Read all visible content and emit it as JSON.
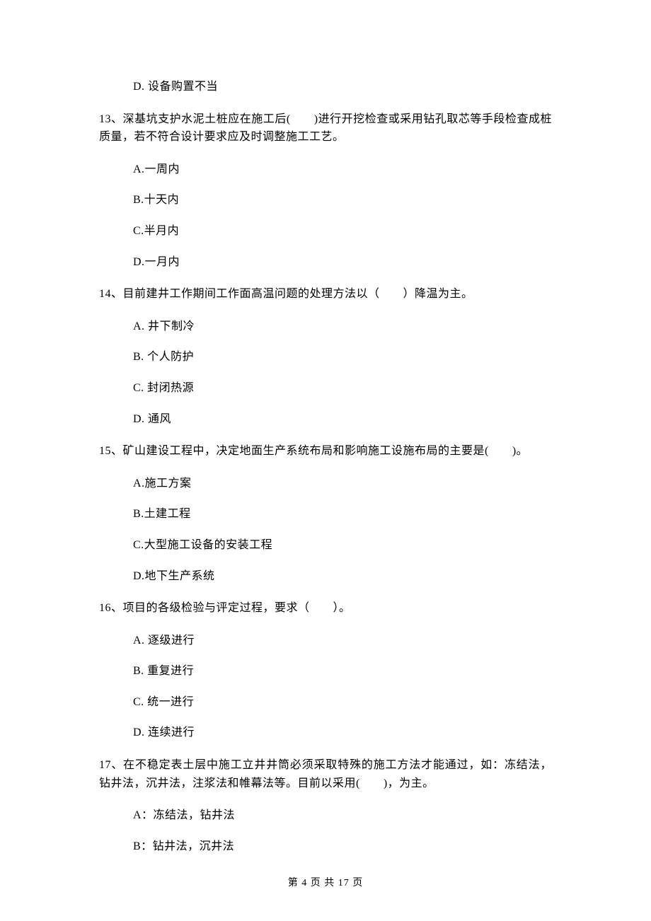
{
  "q12": {
    "optD": "D. 设备购置不当"
  },
  "q13": {
    "stem": "13、深基坑支护水泥土桩应在施工后(　　)进行开挖检查或采用钻孔取芯等手段检查成桩质量，若不符合设计要求应及时调整施工工艺。",
    "optA": "A.一周内",
    "optB": "B.十天内",
    "optC": "C.半月内",
    "optD": "D.一月内"
  },
  "q14": {
    "stem": "14、目前建井工作期间工作面高温问题的处理方法以（　　）降温为主。",
    "optA": "A. 井下制冷",
    "optB": "B. 个人防护",
    "optC": "C. 封闭热源",
    "optD": "D. 通风"
  },
  "q15": {
    "stem": "15、矿山建设工程中，决定地面生产系统布局和影响施工设施布局的主要是(　　)。",
    "optA": "A.施工方案",
    "optB": "B.土建工程",
    "optC": "C.大型施工设备的安装工程",
    "optD": "D.地下生产系统"
  },
  "q16": {
    "stem": "16、项目的各级检验与评定过程，要求（　　）。",
    "optA": "A. 逐级进行",
    "optB": "B. 重复进行",
    "optC": "C. 统一进行",
    "optD": "D. 连续进行"
  },
  "q17": {
    "stem": "17、在不稳定表土层中施工立井井筒必须采取特殊的施工方法才能通过，如：冻结法，钻井法，沉井法，注浆法和帷幕法等。目前以采用(　　)，为主。",
    "optA": "A：冻结法，钻井法",
    "optB": "B：钻井法，沉井法"
  },
  "footer": {
    "text": "第 4 页 共 17 页"
  }
}
